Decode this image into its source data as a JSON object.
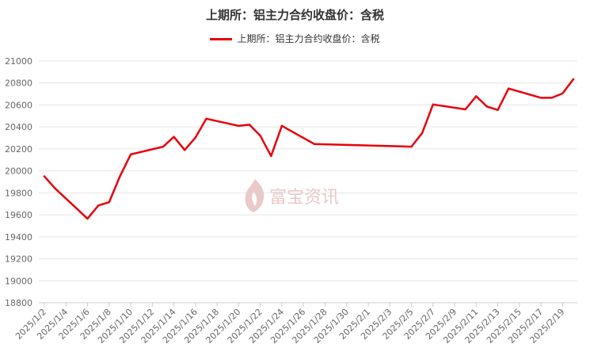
{
  "colors": {
    "series": "#e8000b",
    "axis": "#cccccc",
    "grid": "#e6e6e6",
    "text": "#666666",
    "watermark": "#e9c9c9"
  },
  "watermark": {
    "text": "富宝资讯",
    "icon": "flame-logo-icon"
  },
  "chart_data": {
    "type": "line",
    "title": "上期所：铝主力合约收盘价：含税",
    "xlabel": "",
    "ylabel": "",
    "ylim": [
      18800,
      21000
    ],
    "yticks": [
      18800,
      19000,
      19200,
      19400,
      19600,
      19800,
      20000,
      20200,
      20400,
      20600,
      20800,
      21000
    ],
    "xlim": [
      "2025/1/2",
      "2025/2/20"
    ],
    "xticks": [
      "2025/1/2",
      "2025/1/4",
      "2025/1/6",
      "2025/1/8",
      "2025/1/10",
      "2025/1/12",
      "2025/1/14",
      "2025/1/16",
      "2025/1/18",
      "2025/1/20",
      "2025/1/22",
      "2025/1/24",
      "2025/1/26",
      "2025/1/28",
      "2025/1/30",
      "2025/2/1",
      "2025/2/3",
      "2025/2/5",
      "2025/2/7",
      "2025/2/9",
      "2025/2/11",
      "2025/2/13",
      "2025/2/15",
      "2025/2/17",
      "2025/2/19"
    ],
    "grid": true,
    "legend": "top-center",
    "series": [
      {
        "name": "上期所：铝主力合约收盘价：含税",
        "x": [
          "2025/1/2",
          "2025/1/3",
          "2025/1/6",
          "2025/1/7",
          "2025/1/8",
          "2025/1/9",
          "2025/1/10",
          "2025/1/13",
          "2025/1/14",
          "2025/1/15",
          "2025/1/16",
          "2025/1/17",
          "2025/1/20",
          "2025/1/21",
          "2025/1/22",
          "2025/1/23",
          "2025/1/24",
          "2025/1/27",
          "2025/2/5",
          "2025/2/6",
          "2025/2/7",
          "2025/2/10",
          "2025/2/11",
          "2025/2/12",
          "2025/2/13",
          "2025/2/14",
          "2025/2/17",
          "2025/2/18",
          "2025/2/19",
          "2025/2/20"
        ],
        "values": [
          19950,
          19840,
          19565,
          19685,
          19715,
          19950,
          20150,
          20220,
          20310,
          20190,
          20305,
          20475,
          20410,
          20420,
          20320,
          20135,
          20410,
          20245,
          20220,
          20345,
          20605,
          20560,
          20680,
          20585,
          20555,
          20750,
          20665,
          20665,
          20705,
          20835
        ]
      }
    ]
  }
}
